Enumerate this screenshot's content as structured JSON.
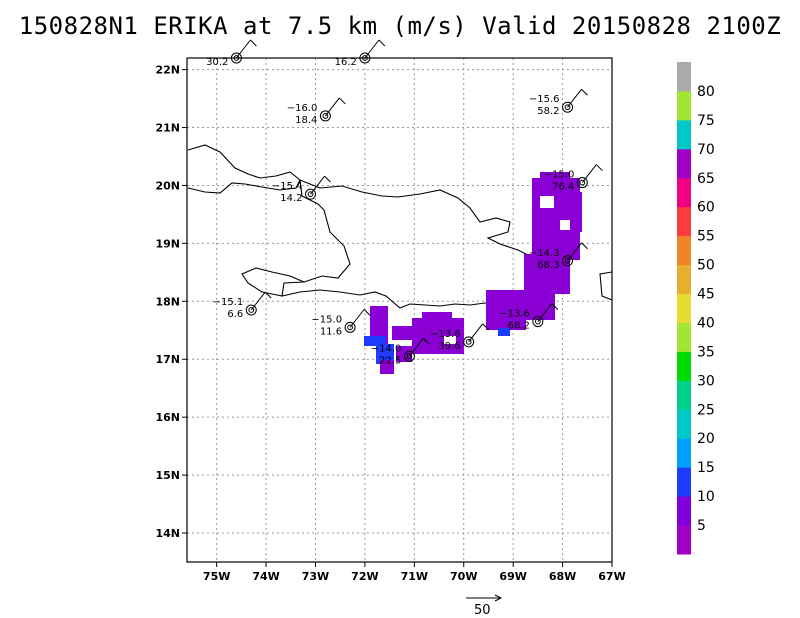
{
  "title": "150828N1 ERIKA at 7.5 km (m/s) Valid 20150828 2100Z",
  "axes": {
    "x_ticks": [
      "75W",
      "74W",
      "73W",
      "72W",
      "71W",
      "70W",
      "69W",
      "68W",
      "67W"
    ],
    "y_ticks": [
      "14N",
      "15N",
      "16N",
      "17N",
      "18N",
      "19N",
      "20N",
      "21N",
      "22N"
    ],
    "lon_range": [
      -75.6,
      -67.0
    ],
    "lat_range": [
      13.5,
      22.2
    ]
  },
  "colorbar": {
    "labels": [
      "5",
      "10",
      "15",
      "20",
      "25",
      "30",
      "35",
      "40",
      "45",
      "50",
      "55",
      "60",
      "65",
      "70",
      "75",
      "80"
    ],
    "colors": [
      "#a000c8",
      "#8200dc",
      "#1e3cff",
      "#00a0ff",
      "#00c8c8",
      "#00d28c",
      "#00dc00",
      "#a0e632",
      "#e6dc32",
      "#e6af2d",
      "#f08228",
      "#fa3c3c",
      "#f00082",
      "#a000c8",
      "#00c8c8",
      "#a0e632",
      "#aaaaaa"
    ]
  },
  "reference_vector": {
    "label": "50"
  },
  "obs": [
    {
      "lon": -74.6,
      "lat": 22.2,
      "temp": "",
      "val": "30.2"
    },
    {
      "lon": -72.0,
      "lat": 22.2,
      "temp": "",
      "val": "16.2"
    },
    {
      "lon": -72.8,
      "lat": 21.2,
      "temp": "−16.0",
      "val": "18.4"
    },
    {
      "lon": -67.9,
      "lat": 21.35,
      "temp": "−15.6",
      "val": "58.2"
    },
    {
      "lon": -67.6,
      "lat": 20.05,
      "temp": "−15.0",
      "val": "76.4"
    },
    {
      "lon": -73.1,
      "lat": 19.85,
      "temp": "−15.4",
      "val": "14.2"
    },
    {
      "lon": -67.9,
      "lat": 18.7,
      "temp": "−14.3",
      "val": "68.3"
    },
    {
      "lon": -74.3,
      "lat": 17.85,
      "temp": "−15.1",
      "val": "6.6"
    },
    {
      "lon": -68.5,
      "lat": 17.65,
      "temp": "−13.6",
      "val": "68.2"
    },
    {
      "lon": -72.3,
      "lat": 17.55,
      "temp": "−15.0",
      "val": "11.6"
    },
    {
      "lon": -69.9,
      "lat": 17.3,
      "temp": "−13.6",
      "val": "39.6"
    },
    {
      "lon": -71.1,
      "lat": 17.05,
      "temp": "−14.0",
      "val": "22.5"
    }
  ]
}
